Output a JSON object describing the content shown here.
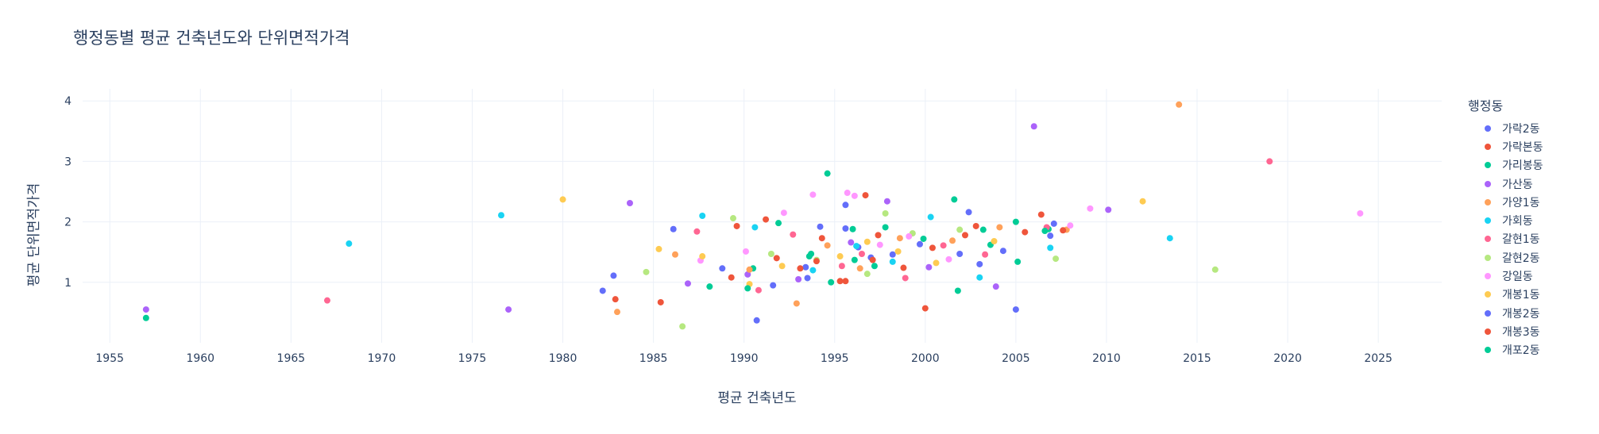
{
  "chart_data": {
    "type": "scatter",
    "title": "행정동별 평균 건축년도와 단위면적가격",
    "xlabel": "평균 건축년도",
    "ylabel": "평균 단위면적가격",
    "xlim": [
      1953.5,
      2028.5
    ],
    "ylim": [
      0.0,
      4.2
    ],
    "xticks": [
      1955,
      1960,
      1965,
      1970,
      1975,
      1980,
      1985,
      1990,
      1995,
      2000,
      2005,
      2010,
      2015,
      2020,
      2025
    ],
    "yticks": [
      1,
      2,
      3,
      4
    ],
    "grid": true,
    "legend_title": "행정동",
    "legend_position": "right",
    "series": [
      {
        "name": "가락2동",
        "color": "#636efa",
        "points": [
          [
            1982.8,
            1.11
          ],
          [
            1990.7,
            0.37
          ],
          [
            1993.4,
            1.25
          ],
          [
            1994.2,
            1.92
          ],
          [
            1995.6,
            2.28
          ],
          [
            1996.3,
            1.58
          ],
          [
            1998.2,
            1.46
          ],
          [
            2002.4,
            2.16
          ],
          [
            2003.0,
            1.3
          ],
          [
            2005.0,
            0.55
          ],
          [
            2006.9,
            1.77
          ]
        ]
      },
      {
        "name": "가락본동",
        "color": "#ef553b",
        "points": [
          [
            1982.9,
            0.72
          ],
          [
            1985.4,
            0.67
          ],
          [
            1989.6,
            1.93
          ],
          [
            1991.2,
            2.04
          ],
          [
            1994.3,
            1.73
          ],
          [
            1995.6,
            1.02
          ],
          [
            1996.7,
            2.44
          ],
          [
            1997.4,
            1.78
          ],
          [
            2000.0,
            0.57
          ],
          [
            2002.8,
            1.93
          ],
          [
            2006.4,
            2.12
          ]
        ]
      },
      {
        "name": "가리봉동",
        "color": "#00cc96",
        "points": [
          [
            1957.0,
            0.41
          ],
          [
            1988.1,
            0.93
          ],
          [
            1990.5,
            1.23
          ],
          [
            1993.7,
            1.47
          ],
          [
            1994.6,
            2.8
          ],
          [
            1996.1,
            1.37
          ],
          [
            1997.8,
            1.91
          ],
          [
            2001.6,
            2.37
          ],
          [
            2003.6,
            1.62
          ],
          [
            2005.1,
            1.34
          ],
          [
            2006.8,
            1.88
          ]
        ]
      },
      {
        "name": "가산동",
        "color": "#ab63fa",
        "points": [
          [
            1957.0,
            0.55
          ],
          [
            1977.0,
            0.55
          ],
          [
            1983.7,
            2.31
          ],
          [
            1986.9,
            0.98
          ],
          [
            1990.2,
            1.13
          ],
          [
            1993.0,
            1.05
          ],
          [
            1995.9,
            1.66
          ],
          [
            1997.9,
            2.34
          ],
          [
            2000.2,
            1.25
          ],
          [
            2003.9,
            0.93
          ],
          [
            2006.0,
            3.58
          ],
          [
            2010.1,
            2.2
          ]
        ]
      },
      {
        "name": "가양1동",
        "color": "#ffa15a",
        "points": [
          [
            1983.0,
            0.51
          ],
          [
            1986.2,
            1.46
          ],
          [
            1990.3,
            1.21
          ],
          [
            1992.9,
            0.65
          ],
          [
            1994.6,
            1.61
          ],
          [
            1996.4,
            1.23
          ],
          [
            1998.6,
            1.73
          ],
          [
            2001.5,
            1.69
          ],
          [
            2004.1,
            1.91
          ],
          [
            2007.8,
            1.87
          ],
          [
            2014.0,
            3.94
          ]
        ]
      },
      {
        "name": "가회동",
        "color": "#19d3f3",
        "points": [
          [
            1968.2,
            1.64
          ],
          [
            1976.6,
            2.11
          ],
          [
            1987.7,
            2.1
          ],
          [
            1990.6,
            1.91
          ],
          [
            1993.8,
            1.2
          ],
          [
            1996.2,
            1.6
          ],
          [
            1998.2,
            1.34
          ],
          [
            2000.3,
            2.08
          ],
          [
            2003.0,
            1.08
          ],
          [
            2006.9,
            1.57
          ],
          [
            2013.5,
            1.73
          ]
        ]
      },
      {
        "name": "갈현1동",
        "color": "#ff6692",
        "points": [
          [
            1967.0,
            0.7
          ],
          [
            1987.4,
            1.84
          ],
          [
            1990.8,
            0.87
          ],
          [
            1992.7,
            1.79
          ],
          [
            1995.4,
            1.27
          ],
          [
            1996.5,
            1.47
          ],
          [
            1998.9,
            1.07
          ],
          [
            2001.0,
            1.61
          ],
          [
            2003.3,
            1.46
          ],
          [
            2006.7,
            1.91
          ],
          [
            2019.0,
            3.0
          ]
        ]
      },
      {
        "name": "갈현2동",
        "color": "#b6e880",
        "points": [
          [
            1984.6,
            1.17
          ],
          [
            1986.6,
            0.27
          ],
          [
            1989.4,
            2.06
          ],
          [
            1991.5,
            1.47
          ],
          [
            1994.0,
            1.37
          ],
          [
            1996.8,
            1.14
          ],
          [
            1997.8,
            2.14
          ],
          [
            1999.3,
            1.81
          ],
          [
            2001.9,
            1.87
          ],
          [
            2007.2,
            1.39
          ],
          [
            2016.0,
            1.21
          ]
        ]
      },
      {
        "name": "강일동",
        "color": "#ff97ff",
        "points": [
          [
            1987.6,
            1.36
          ],
          [
            1990.1,
            1.51
          ],
          [
            1992.2,
            2.15
          ],
          [
            1993.8,
            2.45
          ],
          [
            1995.7,
            2.48
          ],
          [
            1996.1,
            2.43
          ],
          [
            1997.5,
            1.62
          ],
          [
            1999.1,
            1.76
          ],
          [
            2001.3,
            1.38
          ],
          [
            2008.0,
            1.94
          ],
          [
            2009.1,
            2.22
          ],
          [
            2024.0,
            2.14
          ]
        ]
      },
      {
        "name": "개봉1동",
        "color": "#fecb52",
        "points": [
          [
            1980.0,
            2.37
          ],
          [
            1985.3,
            1.55
          ],
          [
            1987.7,
            1.43
          ],
          [
            1990.3,
            0.97
          ],
          [
            1992.1,
            1.27
          ],
          [
            1995.3,
            1.43
          ],
          [
            1996.8,
            1.67
          ],
          [
            1998.5,
            1.51
          ],
          [
            2000.6,
            1.32
          ],
          [
            2003.8,
            1.68
          ],
          [
            2012.0,
            2.34
          ]
        ]
      },
      {
        "name": "개봉2동",
        "color": "#636efa",
        "points": [
          [
            1982.2,
            0.86
          ],
          [
            1986.1,
            1.88
          ],
          [
            1988.8,
            1.23
          ],
          [
            1991.6,
            0.95
          ],
          [
            1993.5,
            1.07
          ],
          [
            1995.6,
            1.89
          ],
          [
            1997.0,
            1.41
          ],
          [
            1999.7,
            1.63
          ],
          [
            2001.9,
            1.47
          ],
          [
            2004.3,
            1.52
          ],
          [
            2007.1,
            1.97
          ]
        ]
      },
      {
        "name": "개봉3동",
        "color": "#ef553b",
        "points": [
          [
            1989.3,
            1.08
          ],
          [
            1991.8,
            1.4
          ],
          [
            1993.1,
            1.23
          ],
          [
            1994.0,
            1.35
          ],
          [
            1995.3,
            1.02
          ],
          [
            1997.1,
            1.37
          ],
          [
            1998.8,
            1.24
          ],
          [
            2000.4,
            1.57
          ],
          [
            2002.2,
            1.78
          ],
          [
            2005.5,
            1.83
          ],
          [
            2007.6,
            1.86
          ]
        ]
      },
      {
        "name": "개포2동",
        "color": "#00cc96",
        "points": [
          [
            1990.2,
            0.9
          ],
          [
            1991.9,
            1.98
          ],
          [
            1993.6,
            1.43
          ],
          [
            1994.8,
            1.0
          ],
          [
            1996.0,
            1.88
          ],
          [
            1997.2,
            1.27
          ],
          [
            1999.9,
            1.72
          ],
          [
            2001.8,
            0.86
          ],
          [
            2003.2,
            1.87
          ],
          [
            2005.0,
            2.0
          ],
          [
            2006.6,
            1.85
          ]
        ]
      }
    ]
  }
}
